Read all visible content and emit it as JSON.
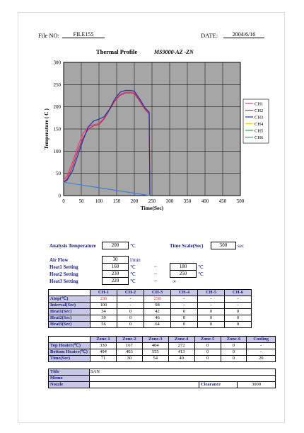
{
  "header": {
    "file_label": "File NO:",
    "file_value": "FILE155",
    "date_label": "DATE:",
    "date_value": "2004/6/16"
  },
  "title": "Thermal Profile",
  "model": "MS9000-AZ  -ZN",
  "chart_data": {
    "type": "line",
    "xlabel": "Time(Sec)",
    "ylabel": "Temperature ( C )",
    "xlim": [
      0,
      500
    ],
    "ylim": [
      0,
      300
    ],
    "xticks": [
      0,
      50,
      100,
      150,
      200,
      250,
      300,
      350,
      400,
      450,
      500
    ],
    "yticks": [
      0,
      50,
      100,
      150,
      200,
      250,
      300
    ],
    "grid": true,
    "legend": "right",
    "series": [
      {
        "name": "CH1",
        "color": "#e04080",
        "points": [
          [
            0,
            35
          ],
          [
            10,
            45
          ],
          [
            25,
            75
          ],
          [
            40,
            110
          ],
          [
            55,
            140
          ],
          [
            70,
            155
          ],
          [
            85,
            160
          ],
          [
            100,
            162
          ],
          [
            115,
            175
          ],
          [
            130,
            195
          ],
          [
            145,
            215
          ],
          [
            160,
            228
          ],
          [
            175,
            233
          ],
          [
            190,
            233
          ],
          [
            200,
            232
          ],
          [
            215,
            215
          ],
          [
            230,
            195
          ],
          [
            242,
            185
          ],
          [
            244,
            0
          ]
        ]
      },
      {
        "name": "CH2",
        "color": "#c0304a",
        "points": [
          [
            0,
            30
          ],
          [
            10,
            38
          ],
          [
            25,
            65
          ],
          [
            40,
            100
          ],
          [
            55,
            130
          ],
          [
            70,
            150
          ],
          [
            85,
            157
          ],
          [
            100,
            160
          ],
          [
            115,
            173
          ],
          [
            130,
            193
          ],
          [
            145,
            213
          ],
          [
            160,
            226
          ],
          [
            175,
            231
          ],
          [
            190,
            231
          ],
          [
            200,
            230
          ],
          [
            215,
            213
          ],
          [
            230,
            194
          ],
          [
            242,
            184
          ],
          [
            244,
            0
          ]
        ]
      },
      {
        "name": "CH3",
        "color": "#2233aa",
        "points": [
          [
            0,
            30
          ],
          [
            10,
            35
          ],
          [
            25,
            55
          ],
          [
            40,
            90
          ],
          [
            55,
            125
          ],
          [
            70,
            155
          ],
          [
            85,
            168
          ],
          [
            100,
            172
          ],
          [
            115,
            178
          ],
          [
            130,
            195
          ],
          [
            145,
            218
          ],
          [
            160,
            233
          ],
          [
            175,
            237
          ],
          [
            190,
            237
          ],
          [
            200,
            235
          ],
          [
            215,
            218
          ],
          [
            230,
            198
          ],
          [
            242,
            188
          ],
          [
            244,
            0
          ]
        ]
      },
      {
        "name": "CH4",
        "color": "#f0d020",
        "points": []
      },
      {
        "name": "CH5",
        "color": "#40a040",
        "points": []
      },
      {
        "name": "CH6",
        "color": "#4080e0",
        "points": [
          [
            0,
            30
          ],
          [
            244,
            0
          ]
        ]
      }
    ]
  },
  "analysis": {
    "temp_label": "Analysis Temperature",
    "temp_value": "200",
    "temp_unit": "℃",
    "scale_label": "Time Scale(Sec)",
    "scale_value": "500",
    "scale_unit": "sec"
  },
  "settings": {
    "air_label": "Air Flow",
    "air_value": "30",
    "air_unit": "l/min",
    "h1_label": "Heat1 Setting",
    "h1_a": "160",
    "h1_b": "180",
    "h2_label": "Heat2 Setting",
    "h2_a": "230",
    "h2_b": "250",
    "h3_label": "Heat3 Setting",
    "h3_a": "220",
    "h3_b": "∞",
    "deg": "℃",
    "tilde": "~"
  },
  "ch_table": {
    "headers": [
      "",
      "CH-1",
      "CH-2",
      "CH-3",
      "CH-4",
      "CH-5",
      "CH-6"
    ],
    "rows": [
      [
        "Atop(℃)",
        "236",
        "-",
        "238",
        "-",
        "-",
        "-"
      ],
      [
        "Interval(Sec)",
        "100",
        "-",
        "98",
        "-",
        "-",
        "-"
      ],
      [
        "Heat1(Sec)",
        "34",
        "0",
        "42",
        "0",
        "0",
        "0"
      ],
      [
        "Heat2(Sec)",
        "39",
        "0",
        "46",
        "0",
        "0",
        "0"
      ],
      [
        "Heat3(Sec)",
        "56",
        "0",
        "64",
        "0",
        "0",
        "0"
      ]
    ]
  },
  "zone_table": {
    "headers": [
      "",
      "Zone-1",
      "Zone-2",
      "Zone-3",
      "Zone-4",
      "Zone-5",
      "Zone-6",
      "Cooling"
    ],
    "rows": [
      [
        "Top Heater(℃)",
        "330",
        "167",
        "404",
        "272",
        "0",
        "0",
        "-"
      ],
      [
        "Bottom Heater(℃)",
        "494",
        "403",
        "555",
        "413",
        "0",
        "0",
        "-"
      ],
      [
        "Time(Sec)",
        "71",
        "30",
        "54",
        "40",
        "0",
        "0",
        "20"
      ]
    ]
  },
  "info_table": {
    "title_label": "Title",
    "title_value": "SAN",
    "memo_label": "Memo",
    "nozzle_label": "Nozzle",
    "clearance_label": "Clearance",
    "clearance_value": "3000"
  }
}
